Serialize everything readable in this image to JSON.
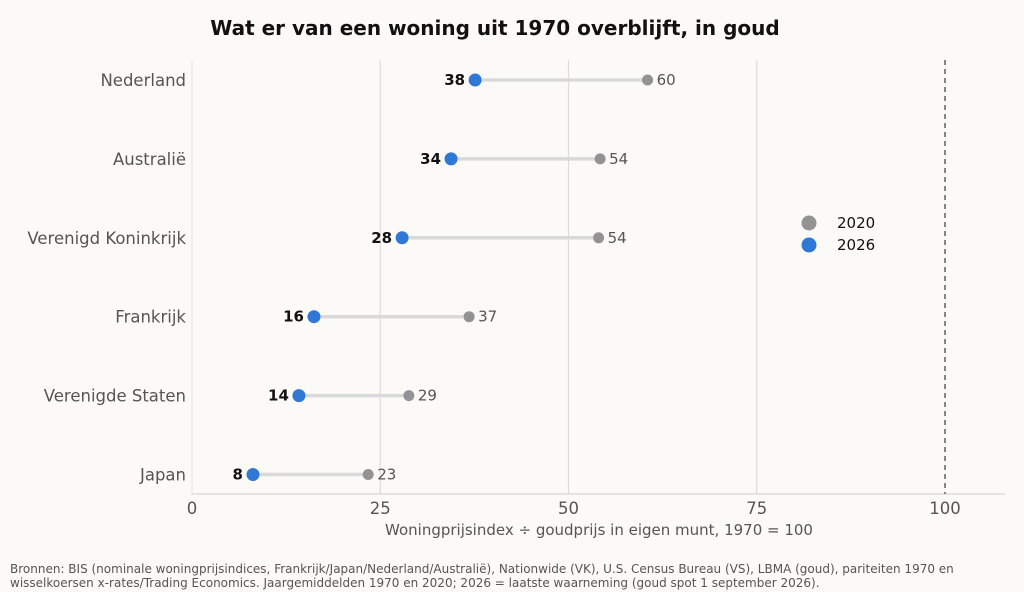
{
  "chart_data": {
    "type": "scatter",
    "subtype": "dumbbell",
    "title": "Wat er van een woning uit 1970 overblijft, in goud",
    "xlabel": "Woningprijsindex ÷ goudprijs in eigen munt, 1970 = 100",
    "ylabel": "",
    "xlim": [
      0,
      108
    ],
    "xticks": [
      0,
      25,
      50,
      75,
      100
    ],
    "reference_line": 100,
    "grid": "vertical",
    "legend_position": "right",
    "categories": [
      "Nederland",
      "Australië",
      "Verenigd Koninkrijk",
      "Frankrijk",
      "Verenigde Staten",
      "Japan"
    ],
    "series": [
      {
        "name": "2020",
        "color": "#939393",
        "values": [
          60.5,
          54.2,
          54.0,
          36.8,
          28.8,
          23.4
        ],
        "labels": [
          "60",
          "54",
          "54",
          "37",
          "29",
          "23"
        ]
      },
      {
        "name": "2026",
        "color": "#2f78d6",
        "values": [
          37.6,
          34.4,
          27.9,
          16.2,
          14.2,
          8.1
        ],
        "labels": [
          "38",
          "34",
          "28",
          "16",
          "14",
          "8"
        ]
      }
    ]
  },
  "source_note": "Bronnen: BIS (nominale woningprijsindices, Frankrijk/Japan/Nederland/Australië), Nationwide (VK), U.S. Census Bureau (VS), LBMA (goud), pariteiten 1970 en wisselkoersen x-rates/Trading Economics. Jaargemiddelden 1970 en 2020; 2026 = laatste waarneming (goud spot 1 september 2026)."
}
